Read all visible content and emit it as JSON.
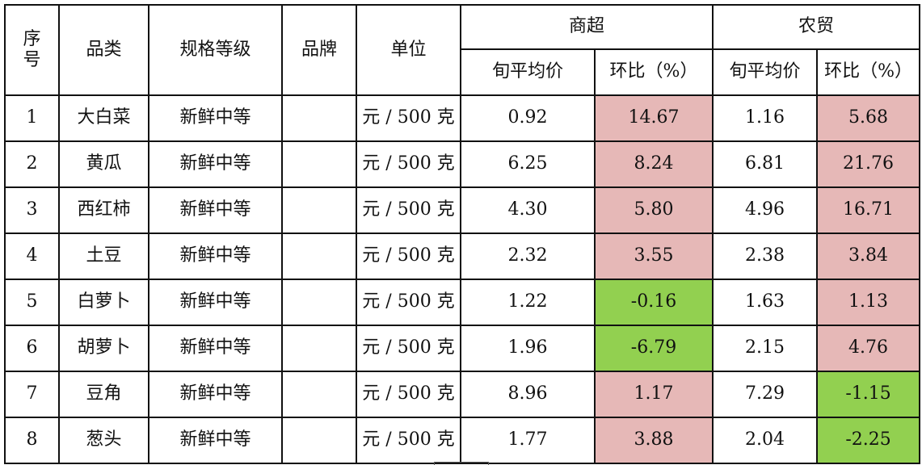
{
  "header": {
    "seq_line1": "序",
    "seq_line2": "号",
    "category": "品类",
    "spec": "规格等级",
    "brand": "品牌",
    "unit": "单位",
    "supermarket": "商超",
    "farmers_market": "农贸",
    "avg_price": "旬平均价",
    "ratio": "环比（%）"
  },
  "colors": {
    "increase": "#e6b8b7",
    "decrease": "#92d050"
  },
  "rows": [
    {
      "seq": "1",
      "category": "大白菜",
      "spec": "新鲜中等",
      "brand": "",
      "unit": "元 / 500 克",
      "s_price": "0.92",
      "s_ratio": "14.67",
      "f_price": "1.16",
      "f_ratio": "5.68"
    },
    {
      "seq": "2",
      "category": "黄瓜",
      "spec": "新鲜中等",
      "brand": "",
      "unit": "元 / 500 克",
      "s_price": "6.25",
      "s_ratio": "8.24",
      "f_price": "6.81",
      "f_ratio": "21.76"
    },
    {
      "seq": "3",
      "category": "西红柿",
      "spec": "新鲜中等",
      "brand": "",
      "unit": "元 / 500 克",
      "s_price": "4.30",
      "s_ratio": "5.80",
      "f_price": "4.96",
      "f_ratio": "16.71"
    },
    {
      "seq": "4",
      "category": "土豆",
      "spec": "新鲜中等",
      "brand": "",
      "unit": "元 / 500 克",
      "s_price": "2.32",
      "s_ratio": "3.55",
      "f_price": "2.38",
      "f_ratio": "3.84"
    },
    {
      "seq": "5",
      "category": "白萝卜",
      "spec": "新鲜中等",
      "brand": "",
      "unit": "元 / 500 克",
      "s_price": "1.22",
      "s_ratio": "-0.16",
      "f_price": "1.63",
      "f_ratio": "1.13"
    },
    {
      "seq": "6",
      "category": "胡萝卜",
      "spec": "新鲜中等",
      "brand": "",
      "unit": "元 / 500 克",
      "s_price": "1.96",
      "s_ratio": "-6.79",
      "f_price": "2.15",
      "f_ratio": "4.76"
    },
    {
      "seq": "7",
      "category": "豆角",
      "spec": "新鲜中等",
      "brand": "",
      "unit": "元 / 500 克",
      "s_price": "8.96",
      "s_ratio": "1.17",
      "f_price": "7.29",
      "f_ratio": "-1.15"
    },
    {
      "seq": "8",
      "category": "葱头",
      "spec": "新鲜中等",
      "brand": "",
      "unit": "元 / 500 克",
      "s_price": "1.77",
      "s_ratio": "3.88",
      "f_price": "2.04",
      "f_ratio": "-2.25"
    }
  ]
}
